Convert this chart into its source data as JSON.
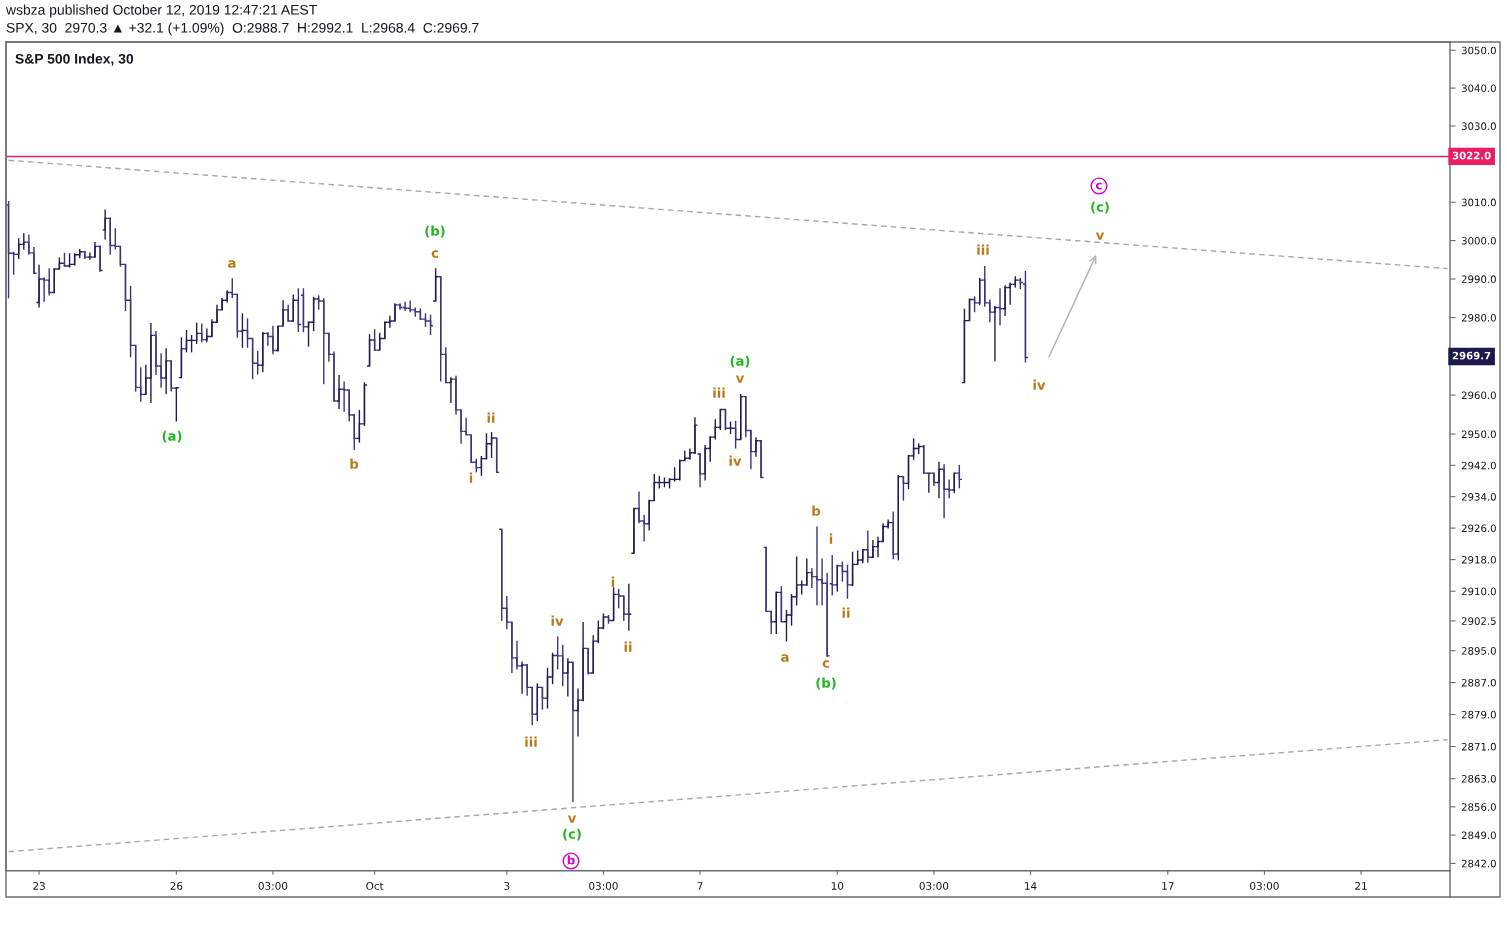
{
  "chart_data": {
    "type": "candlestick",
    "title": "S&P 500 Index, 30",
    "subtitle": "SPX, 30  2970.3 ▲ +32.1 (+1.09%)  O:2988.7  H:2992.1  L:2968.4  C:2969.7",
    "log": true,
    "ylim": [
      2840.2,
      3052.2
    ],
    "yticks": [
      {
        "value": 3050,
        "label": "3050.0"
      },
      {
        "value": 3040,
        "label": "3040.0"
      },
      {
        "value": 3030,
        "label": "3030.0"
      },
      {
        "value": 3010,
        "label": "3010.0"
      },
      {
        "value": 3000,
        "label": "3000.0"
      },
      {
        "value": 2990,
        "label": "2990.0"
      },
      {
        "value": 2980,
        "label": "2980.0"
      },
      {
        "value": 2960,
        "label": "2960.0"
      },
      {
        "value": 2950,
        "label": "2950.0"
      },
      {
        "value": 2942,
        "label": "2942.0"
      },
      {
        "value": 2934,
        "label": "2934.0"
      },
      {
        "value": 2926,
        "label": "2926.0"
      },
      {
        "value": 2918,
        "label": "2918.0"
      },
      {
        "value": 2910,
        "label": "2910.0"
      },
      2902.5,
      {
        "value": 2895,
        "label": "2895.0"
      },
      {
        "value": 2887,
        "label": "2887.0"
      },
      {
        "value": 2879,
        "label": "2879.0"
      },
      {
        "value": 2871,
        "label": "2871.0"
      },
      {
        "value": 2863,
        "label": "2863.0"
      },
      {
        "value": 2856,
        "label": "2856.0"
      },
      {
        "value": 2849,
        "label": "2849.0"
      },
      {
        "value": 2842,
        "label": "2842.0"
      }
    ],
    "categories": [
      null,
      null,
      null,
      null,
      null,
      null,
      "23",
      null,
      null,
      null,
      null,
      null,
      null,
      null,
      null,
      null,
      null,
      null,
      null,
      null,
      null,
      null,
      null,
      null,
      null,
      null,
      null,
      null,
      null,
      null,
      null,
      null,
      null,
      "26",
      null,
      null,
      null,
      null,
      null,
      null,
      null,
      null,
      null,
      null,
      null,
      null,
      null,
      null,
      null,
      null,
      null,
      null,
      "03:00",
      null,
      null,
      null,
      null,
      null,
      null,
      null,
      null,
      null,
      null,
      null,
      null,
      null,
      null,
      null,
      null,
      null,
      null,
      null,
      "Oct",
      null,
      null,
      null,
      null,
      null,
      null,
      null,
      null,
      null,
      null,
      null,
      null,
      null,
      null,
      null,
      null,
      null,
      null,
      null,
      null,
      null,
      null,
      null,
      null,
      null,
      "3",
      null,
      null,
      null,
      null,
      null,
      null,
      null,
      null,
      null,
      null,
      null,
      null,
      null,
      null,
      null,
      null,
      null,
      null,
      "03:00",
      null,
      null,
      null,
      null,
      null,
      null,
      null,
      null,
      null,
      null,
      null,
      null,
      null,
      null,
      null,
      null,
      null,
      null,
      "7",
      null,
      null,
      null,
      null,
      null,
      null,
      null,
      null,
      null,
      null,
      null,
      null,
      null,
      null,
      null,
      null,
      null,
      null,
      null,
      null,
      null,
      null,
      null,
      null,
      null,
      null,
      "10",
      null,
      null,
      null,
      null,
      null,
      null,
      null,
      null,
      null,
      null,
      null,
      null,
      null,
      null,
      null,
      null,
      null,
      null,
      "03:00",
      null,
      null,
      null,
      null,
      null,
      null,
      null,
      null,
      null,
      null,
      null,
      null,
      null,
      null,
      null,
      null,
      null,
      null,
      "14",
      null,
      null,
      null,
      null,
      null,
      null,
      null,
      null,
      null,
      null,
      null,
      null,
      null,
      null,
      null,
      null,
      null,
      null,
      null,
      null,
      null,
      null,
      null,
      null,
      null,
      null,
      "17",
      null,
      null,
      null,
      null,
      null,
      null,
      null,
      null,
      null,
      null,
      null,
      null,
      null,
      null,
      null,
      null,
      null,
      null,
      "03:00",
      null,
      null,
      null,
      null,
      null,
      null,
      null,
      null,
      null,
      null,
      null,
      null,
      null,
      null,
      null,
      null,
      null,
      null,
      "21",
      null,
      null,
      null,
      null,
      null,
      null,
      null,
      null,
      null,
      null,
      null,
      null,
      null,
      null,
      null,
      null,
      null
    ],
    "ohlc": [
      [
        3009.3,
        3010.3,
        2985.0,
        2996.7
      ],
      [
        2996.7,
        2997.1,
        2991.1,
        2996.4
      ],
      [
        2996.4,
        3000.6,
        2995.2,
        2999.0
      ],
      [
        2999.0,
        3001.9,
        2997.6,
        2999.6
      ],
      [
        2999.6,
        3001.5,
        2996.3,
        2996.8
      ],
      [
        2996.8,
        2998.3,
        2991.5,
        2991.5
      ],
      [
        2983.9,
        2993.7,
        2982.6,
        2990.0
      ],
      [
        2990.0,
        2990.4,
        2984.1,
        2989.7
      ],
      [
        2989.7,
        2992.8,
        2985.7,
        2986.5
      ],
      [
        2986.5,
        2992.8,
        2986.5,
        2992.6
      ],
      [
        2992.6,
        2995.6,
        2992.6,
        2994.1
      ],
      [
        2994.1,
        2996.8,
        2993.2,
        2993.4
      ],
      [
        2993.4,
        2996.7,
        2993.0,
        2993.8
      ],
      [
        2993.8,
        2996.7,
        2993.5,
        2996.3
      ],
      [
        2996.3,
        2997.8,
        2995.4,
        2997.1
      ],
      [
        2997.1,
        2997.3,
        2995.2,
        2995.7
      ],
      [
        2995.7,
        2996.9,
        2995.0,
        2995.7
      ],
      [
        2995.7,
        2999.6,
        2995.6,
        2998.5
      ],
      [
        2998.5,
        2998.7,
        2991.9,
        2992.2
      ],
      [
        3002.8,
        3008.1,
        3000.3,
        3005.8
      ],
      [
        3005.8,
        3006.0,
        2996.3,
        2998.7
      ],
      [
        2998.7,
        3003.2,
        2997.7,
        2998.5
      ],
      [
        2998.5,
        2998.5,
        2993.2,
        2993.8
      ],
      [
        2993.8,
        2993.8,
        2981.7,
        2984.5
      ],
      [
        2984.5,
        2988.2,
        2969.7,
        2972.8
      ],
      [
        2972.8,
        2972.8,
        2960.9,
        2962.0
      ],
      [
        2962.0,
        2967.2,
        2958.3,
        2960.2
      ],
      [
        2960.2,
        2967.8,
        2960.0,
        2964.4
      ],
      [
        2964.4,
        2978.6,
        2958.0,
        2975.4
      ],
      [
        2975.4,
        2976.5,
        2965.2,
        2967.5
      ],
      [
        2967.5,
        2970.8,
        2961.9,
        2964.4
      ],
      [
        2964.4,
        2972.1,
        2960.3,
        2968.8
      ],
      [
        2968.8,
        2968.9,
        2960.9,
        2961.8
      ],
      [
        2961.8,
        2962.0,
        2953.2,
        2961.9
      ],
      [
        2964.5,
        2974.9,
        2964.5,
        2971.9
      ],
      [
        2971.9,
        2976.8,
        2971.0,
        2974.1
      ],
      [
        2974.1,
        2975.5,
        2971.0,
        2974.1
      ],
      [
        2974.1,
        2978.7,
        2973.2,
        2975.9
      ],
      [
        2975.9,
        2978.5,
        2973.6,
        2974.3
      ],
      [
        2974.3,
        2977.2,
        2973.6,
        2975.1
      ],
      [
        2975.1,
        2979.6,
        2975.1,
        2978.8
      ],
      [
        2978.8,
        2983.3,
        2978.8,
        2982.0
      ],
      [
        2982.0,
        2985.1,
        2982.0,
        2984.5
      ],
      [
        2984.5,
        2987.1,
        2983.9,
        2986.5
      ],
      [
        2986.5,
        2990.2,
        2985.1,
        2986.0
      ],
      [
        2986.0,
        2986.0,
        2974.8,
        2976.5
      ],
      [
        2976.5,
        2981.1,
        2972.2,
        2976.7
      ],
      [
        2976.7,
        2979.8,
        2972.2,
        2974.6
      ],
      [
        2974.6,
        2974.6,
        2964.1,
        2968.2
      ],
      [
        2968.2,
        2971.4,
        2965.3,
        2967.7
      ],
      [
        2967.7,
        2976.3,
        2965.9,
        2975.9
      ],
      [
        2975.9,
        2976.2,
        2972.7,
        2975.1
      ],
      [
        2975.1,
        2977.9,
        2970.5,
        2971.5
      ],
      [
        2971.5,
        2977.8,
        2971.2,
        2977.8
      ],
      [
        2977.8,
        2984.5,
        2977.8,
        2982.0
      ],
      [
        2982.0,
        2983.3,
        2978.9,
        2979.1
      ],
      [
        2979.1,
        2986.0,
        2978.9,
        2984.5
      ],
      [
        2984.5,
        2987.6,
        2976.3,
        2978.2
      ],
      [
        2985.8,
        2987.6,
        2976.2,
        2977.6
      ],
      [
        2977.6,
        2978.9,
        2972.5,
        2978.8
      ],
      [
        2978.8,
        2985.4,
        2976.5,
        2984.8
      ],
      [
        2984.8,
        2985.8,
        2982.0,
        2984.3
      ],
      [
        2984.3,
        2985.0,
        2962.8,
        2975.9
      ],
      [
        2975.9,
        2976.1,
        2968.6,
        2970.5
      ],
      [
        2970.5,
        2971.2,
        2958.5,
        2958.5
      ],
      [
        2958.5,
        2965.2,
        2956.4,
        2961.5
      ],
      [
        2961.5,
        2963.5,
        2955.7,
        2961.3
      ],
      [
        2961.3,
        2961.3,
        2953.2,
        2954.9
      ],
      [
        2954.9,
        2955.1,
        2945.9,
        2948.9
      ],
      [
        2948.9,
        2956.2,
        2947.8,
        2952.6
      ],
      [
        2952.6,
        2963.3,
        2952.1,
        2962.6
      ],
      [
        2967.5,
        2975.7,
        2967.5,
        2974.2
      ],
      [
        2974.2,
        2977.0,
        2971.4,
        2971.6
      ],
      [
        2971.6,
        2976.1,
        2971.6,
        2974.6
      ],
      [
        2974.6,
        2978.9,
        2974.6,
        2978.8
      ],
      [
        2978.8,
        2980.5,
        2977.4,
        2979.1
      ],
      [
        2979.1,
        2983.7,
        2979.1,
        2983.3
      ],
      [
        2983.3,
        2983.7,
        2982.0,
        2982.6
      ],
      [
        2982.6,
        2984.1,
        2981.7,
        2982.4
      ],
      [
        2982.4,
        2984.4,
        2981.4,
        2982.0
      ],
      [
        2982.0,
        2982.6,
        2980.2,
        2981.5
      ],
      [
        2981.5,
        2982.4,
        2979.4,
        2979.6
      ],
      [
        2979.6,
        2981.1,
        2977.6,
        2979.1
      ],
      [
        2979.1,
        2980.8,
        2975.5,
        2977.9
      ],
      [
        2984.3,
        2992.8,
        2984.3,
        2990.6
      ],
      [
        2990.6,
        2990.6,
        2963.5,
        2970.5
      ],
      [
        2970.5,
        2972.3,
        2963.1,
        2963.2
      ],
      [
        2963.2,
        2964.6,
        2958.0,
        2964.1
      ],
      [
        2964.1,
        2965.0,
        2955.0,
        2956.2
      ],
      [
        2956.2,
        2956.2,
        2947.5,
        2950.7
      ],
      [
        2950.7,
        2954.2,
        2949.8,
        2949.8
      ],
      [
        2949.8,
        2949.8,
        2942.6,
        2942.8
      ],
      [
        2942.8,
        2943.7,
        2940.2,
        2941.4
      ],
      [
        2941.4,
        2944.4,
        2939.3,
        2943.7
      ],
      [
        2943.7,
        2950.2,
        2943.5,
        2947.5
      ],
      [
        2947.5,
        2950.5,
        2943.9,
        2949.0
      ],
      [
        2949.0,
        2949.0,
        2940.2,
        2940.2
      ],
      [
        2925.7,
        2925.7,
        2902.5,
        2905.7
      ],
      [
        2905.7,
        2908.8,
        2900.4,
        2902.2
      ],
      [
        2902.2,
        2902.2,
        2889.4,
        2893.2
      ],
      [
        2893.2,
        2897.5,
        2890.3,
        2891.2
      ],
      [
        2891.2,
        2892.3,
        2884.2,
        2891.4
      ],
      [
        2891.4,
        2891.6,
        2883.7,
        2885.8
      ],
      [
        2885.8,
        2885.9,
        2876.3,
        2879.1
      ],
      [
        2879.1,
        2886.8,
        2877.4,
        2885.8
      ],
      [
        2885.8,
        2885.8,
        2880.2,
        2883.1
      ],
      [
        2883.1,
        2890.7,
        2880.5,
        2888.4
      ],
      [
        2888.4,
        2894.5,
        2886.6,
        2893.8
      ],
      [
        2893.8,
        2898.6,
        2890.3,
        2893.7
      ],
      [
        2893.7,
        2896.5,
        2886.1,
        2889.4
      ],
      [
        2889.4,
        2893.1,
        2883.5,
        2892.1
      ],
      [
        2892.1,
        2892.1,
        2857.2,
        2880.0
      ],
      [
        2880.0,
        2885.5,
        2873.5,
        2882.6
      ],
      [
        2882.6,
        2902.2,
        2882.3,
        2895.6
      ],
      [
        2895.6,
        2895.6,
        2889.0,
        2889.4
      ],
      [
        2889.4,
        2898.9,
        2889.4,
        2897.4
      ],
      [
        2897.4,
        2902.6,
        2896.9,
        2900.7
      ],
      [
        2900.7,
        2904.4,
        2900.4,
        2903.5
      ],
      [
        2903.5,
        2904.0,
        2901.8,
        2902.6
      ],
      [
        2902.6,
        2911.0,
        2902.6,
        2909.2
      ],
      [
        2909.2,
        2910.6,
        2905.7,
        2908.8
      ],
      [
        2908.8,
        2908.8,
        2902.5,
        2904.2
      ],
      [
        2904.2,
        2911.9,
        2900.0,
        2904.2
      ],
      [
        2919.6,
        2931.0,
        2919.6,
        2931.0
      ],
      [
        2931.0,
        2935.3,
        2927.2,
        2927.8
      ],
      [
        2927.8,
        2929.3,
        2922.6,
        2927.1
      ],
      [
        2927.1,
        2933.2,
        2925.4,
        2933.0
      ],
      [
        2933.0,
        2939.8,
        2933.0,
        2937.6
      ],
      [
        2937.6,
        2939.3,
        2936.1,
        2937.6
      ],
      [
        2937.6,
        2938.9,
        2936.4,
        2937.6
      ],
      [
        2937.6,
        2938.7,
        2936.1,
        2938.4
      ],
      [
        2938.4,
        2941.5,
        2937.8,
        2938.4
      ],
      [
        2938.4,
        2943.5,
        2938.1,
        2943.2
      ],
      [
        2943.2,
        2945.8,
        2943.2,
        2943.8
      ],
      [
        2943.8,
        2946.3,
        2943.4,
        2945.2
      ],
      [
        2945.2,
        2954.3,
        2944.9,
        2952.3
      ],
      [
        2944.9,
        2945.1,
        2936.4,
        2939.8
      ],
      [
        2939.8,
        2947.2,
        2938.1,
        2946.3
      ],
      [
        2946.3,
        2949.5,
        2942.9,
        2949.2
      ],
      [
        2949.2,
        2953.8,
        2948.6,
        2951.7
      ],
      [
        2951.7,
        2956.3,
        2951.0,
        2956.3
      ],
      [
        2956.3,
        2956.3,
        2951.0,
        2951.5
      ],
      [
        2951.5,
        2953.2,
        2950.0,
        2951.5
      ],
      [
        2951.5,
        2953.4,
        2946.3,
        2948.6
      ],
      [
        2948.6,
        2960.3,
        2948.6,
        2959.6
      ],
      [
        2959.6,
        2959.8,
        2949.2,
        2950.9
      ],
      [
        2950.9,
        2950.9,
        2941.0,
        2945.5
      ],
      [
        2945.5,
        2949.2,
        2944.2,
        2948.3
      ],
      [
        2948.3,
        2948.5,
        2938.9,
        2938.9
      ],
      [
        2921.1,
        2921.1,
        2904.9,
        2904.9
      ],
      [
        2904.9,
        2904.9,
        2899.2,
        2902.3
      ],
      [
        2902.3,
        2909.9,
        2899.2,
        2909.7
      ],
      [
        2909.7,
        2911.3,
        2902.3,
        2902.3
      ],
      [
        2902.3,
        2905.3,
        2897.3,
        2904.0
      ],
      [
        2904.0,
        2909.3,
        2901.3,
        2908.6
      ],
      [
        2908.6,
        2918.8,
        2906.4,
        2911.6
      ],
      [
        2911.6,
        2912.7,
        2909.2,
        2911.6
      ],
      [
        2911.6,
        2918.3,
        2911.3,
        2914.7
      ],
      [
        2914.7,
        2915.8,
        2910.8,
        2913.7
      ],
      [
        2913.7,
        2926.4,
        2906.4,
        2912.9
      ],
      [
        2912.9,
        2918.3,
        2906.4,
        2912.0
      ],
      [
        2912.0,
        2914.6,
        2893.5,
        2893.7
      ],
      [
        2911.9,
        2919.2,
        2908.9,
        2911.6
      ],
      [
        2911.6,
        2916.7,
        2909.9,
        2916.4
      ],
      [
        2916.4,
        2917.5,
        2912.4,
        2915.0
      ],
      [
        2915.0,
        2916.7,
        2908.1,
        2911.6
      ],
      [
        2911.6,
        2920.0,
        2911.3,
        2916.8
      ],
      [
        2916.8,
        2920.3,
        2916.8,
        2917.9
      ],
      [
        2917.9,
        2920.5,
        2917.1,
        2920.5
      ],
      [
        2920.5,
        2925.4,
        2917.2,
        2918.6
      ],
      [
        2918.6,
        2923.0,
        2918.5,
        2921.3
      ],
      [
        2921.3,
        2923.8,
        2918.6,
        2922.6
      ],
      [
        2922.6,
        2927.2,
        2922.6,
        2926.4
      ],
      [
        2926.4,
        2928.2,
        2925.9,
        2927.4
      ],
      [
        2927.4,
        2930.2,
        2918.1,
        2919.4
      ],
      [
        2919.4,
        2939.5,
        2917.8,
        2939.1
      ],
      [
        2939.1,
        2939.1,
        2933.0,
        2937.4
      ],
      [
        2937.4,
        2944.6,
        2935.9,
        2944.4
      ],
      [
        2944.4,
        2948.9,
        2943.4,
        2946.3
      ],
      [
        2946.3,
        2947.6,
        2944.9,
        2946.8
      ],
      [
        2946.8,
        2947.2,
        2939.8,
        2940.0
      ],
      [
        2940.0,
        2940.0,
        2935.0,
        2940.0
      ],
      [
        2940.0,
        2940.1,
        2936.7,
        2937.6
      ],
      [
        2937.6,
        2942.9,
        2933.6,
        2941.0
      ],
      [
        2941.0,
        2942.3,
        2928.5,
        2935.9
      ],
      [
        2935.9,
        2938.4,
        2933.6,
        2935.7
      ],
      [
        2935.7,
        2940.1,
        2934.9,
        2940.0
      ],
      [
        2940.0,
        2942.1,
        2936.1,
        2938.4
      ],
      [
        2963.2,
        2982.3,
        2963.2,
        2979.2
      ],
      [
        2979.2,
        2984.9,
        2979.2,
        2984.7
      ],
      [
        2984.7,
        2985.5,
        2981.4,
        2983.8
      ],
      [
        2983.8,
        2990.3,
        2983.3,
        2989.7
      ],
      [
        2989.7,
        2993.4,
        2982.8,
        2983.8
      ],
      [
        2983.8,
        2984.7,
        2978.8,
        2981.4
      ],
      [
        2981.4,
        2983.0,
        2968.7,
        2982.6
      ],
      [
        2982.6,
        2987.6,
        2978.0,
        2982.3
      ],
      [
        2982.3,
        2988.4,
        2980.4,
        2987.8
      ],
      [
        2987.8,
        2989.1,
        2983.3,
        2988.6
      ],
      [
        2988.6,
        2990.7,
        2987.8,
        2989.7
      ],
      [
        2989.7,
        2990.3,
        2987.4,
        2989.1
      ],
      [
        2988.7,
        2992.1,
        2968.4,
        2969.7
      ],
      null,
      null,
      null,
      null,
      null,
      null,
      null,
      null,
      null,
      null,
      null,
      null,
      null,
      null,
      null,
      null,
      null,
      null,
      null,
      null,
      null,
      null,
      null,
      null,
      null,
      null,
      null,
      null,
      null,
      null,
      null,
      null,
      null,
      null,
      null,
      null,
      null,
      null,
      null,
      null,
      null,
      null,
      null,
      null,
      null,
      null,
      null,
      null,
      null,
      null,
      null,
      null,
      null,
      null,
      null,
      null,
      null,
      null,
      null,
      null,
      null,
      null,
      null,
      null,
      null,
      null,
      null,
      null,
      null,
      null,
      null,
      null,
      null,
      null,
      null,
      null,
      null,
      null,
      null,
      null,
      null,
      null,
      null
    ],
    "colors": [
      "#3a3478",
      "#3a3478",
      "#221c52",
      "#221c52",
      "#3a3478",
      "#3a3478",
      "#221c52",
      "#3a3478",
      "#3a3478",
      "#221c52",
      "#221c52",
      "#3a3478",
      "#221c52",
      "#221c52",
      "#221c52",
      "#3a3478",
      "#221c52",
      "#221c52",
      "#3a3478",
      "#221c52",
      "#3a3478",
      "#3a3478",
      "#3a3478",
      "#3a3478",
      "#3a3478",
      "#3a3478",
      "#3a3478",
      "#221c52",
      "#221c52",
      "#3a3478",
      "#3a3478",
      "#221c52",
      "#3a3478",
      "#221c52",
      "#221c52",
      "#221c52",
      "#221c52",
      "#221c52",
      "#3a3478",
      "#221c52",
      "#221c52",
      "#221c52",
      "#221c52",
      "#221c52",
      "#3a3478",
      "#3a3478",
      "#221c52",
      "#3a3478",
      "#3a3478",
      "#3a3478",
      "#221c52",
      "#3a3478",
      "#3a3478",
      "#221c52",
      "#221c52",
      "#3a3478",
      "#221c52",
      "#3a3478",
      "#3a3478",
      "#221c52",
      "#221c52",
      "#3a3478",
      "#3a3478",
      "#3a3478",
      "#3a3478",
      "#221c52",
      "#3a3478",
      "#3a3478",
      "#3a3478",
      "#221c52",
      "#221c52",
      "#221c52",
      "#3a3478",
      "#221c52",
      "#221c52",
      "#221c52",
      "#221c52",
      "#3a3478",
      "#3a3478",
      "#3a3478",
      "#3a3478",
      "#3a3478",
      "#3a3478",
      "#3a3478",
      "#221c52",
      "#3a3478",
      "#3a3478",
      "#221c52",
      "#3a3478",
      "#3a3478",
      "#3a3478",
      "#3a3478",
      "#3a3478",
      "#221c52",
      "#221c52",
      "#221c52",
      "#3a3478",
      "#3a3478",
      "#3a3478",
      "#3a3478",
      "#3a3478",
      "#221c52",
      "#3a3478",
      "#3a3478",
      "#221c52",
      "#3a3478",
      "#221c52",
      "#221c52",
      "#3a3478",
      "#3a3478",
      "#221c52",
      "#3a3478",
      "#221c52",
      "#221c52",
      "#3a3478",
      "#221c52",
      "#221c52",
      "#221c52",
      "#3a3478",
      "#221c52",
      "#3a3478",
      "#3a3478",
      "#221c52",
      "#221c52",
      "#3a3478",
      "#3a3478",
      "#221c52",
      "#221c52",
      "#221c52",
      "#221c52",
      "#221c52",
      "#221c52",
      "#221c52",
      "#221c52",
      "#221c52",
      "#221c52",
      "#3a3478",
      "#221c52",
      "#221c52",
      "#221c52",
      "#221c52",
      "#3a3478",
      "#221c52",
      "#3a3478",
      "#221c52",
      "#3a3478",
      "#3a3478",
      "#221c52",
      "#3a3478",
      "#3a3478",
      "#3a3478",
      "#221c52",
      "#3a3478",
      "#221c52",
      "#221c52",
      "#221c52",
      "#221c52",
      "#221c52",
      "#3a3478",
      "#3a3478",
      "#3a3478",
      "#3a3478",
      "#3a3478",
      "#221c52",
      "#3a3478",
      "#3a3478",
      "#221c52",
      "#221c52",
      "#221c52",
      "#3a3478",
      "#221c52",
      "#221c52",
      "#221c52",
      "#221c52",
      "#3a3478",
      "#221c52",
      "#3a3478",
      "#221c52",
      "#221c52",
      "#221c52",
      "#3a3478",
      "#221c52",
      "#3a3478",
      "#221c52",
      "#3a3478",
      "#3a3478",
      "#221c52",
      "#3a3478",
      "#221c52",
      "#221c52",
      "#3a3478",
      "#221c52",
      "#3a3478",
      "#3a3478",
      "#221c52",
      "#3a3478",
      "#221c52",
      "#221c52",
      "#221c52",
      "#3a3478",
      "#3a3478",
      null,
      null,
      null,
      null,
      null,
      null,
      null,
      null,
      null,
      null,
      null,
      null,
      null,
      null,
      null,
      null,
      null,
      null,
      null,
      null,
      null,
      null,
      null,
      null,
      null,
      null,
      null,
      null,
      null,
      null,
      null,
      null,
      null,
      null,
      null,
      null,
      null,
      null,
      null,
      null,
      null,
      null,
      null,
      null,
      null,
      null,
      null,
      null,
      null,
      null,
      null,
      null,
      null,
      null,
      null,
      null,
      null,
      null,
      null,
      null,
      null,
      null,
      null,
      null,
      null,
      null,
      null,
      null,
      null,
      null,
      null,
      null,
      null,
      null,
      null,
      null,
      null,
      null,
      null,
      null,
      null,
      null,
      null
    ],
    "series": [
      {
        "type": "line",
        "color": "#a3a6af",
        "line_style": "dashed",
        "values": [
          3021.0,
          null,
          null,
          null,
          null,
          null,
          null,
          null,
          null,
          null,
          null,
          null,
          null,
          null,
          null,
          null,
          null,
          null,
          null,
          null,
          null,
          null,
          null,
          null,
          null,
          null,
          null,
          null,
          null,
          null,
          null,
          null,
          null,
          null,
          null,
          null,
          null,
          null,
          null,
          null,
          null,
          null,
          null,
          null,
          null,
          null,
          null,
          null,
          null,
          null,
          null,
          null,
          null,
          null,
          null,
          null,
          null,
          null,
          null,
          null,
          null,
          null,
          null,
          null,
          null,
          null,
          null,
          null,
          null,
          null,
          null,
          null,
          null,
          null,
          null,
          null,
          null,
          null,
          null,
          null,
          null,
          null,
          null,
          null,
          null,
          null,
          null,
          null,
          null,
          null,
          null,
          null,
          null,
          null,
          null,
          null,
          null,
          null,
          null,
          null,
          null,
          null,
          null,
          null,
          null,
          null,
          null,
          null,
          null,
          null,
          null,
          null,
          null,
          null,
          null,
          null,
          null,
          null,
          null,
          null,
          null,
          null,
          null,
          null,
          null,
          null,
          null,
          null,
          null,
          null,
          null,
          null,
          null,
          null,
          null,
          null,
          null,
          null,
          null,
          null,
          null,
          null,
          null,
          null,
          null,
          null,
          null,
          null,
          null,
          null,
          null,
          null,
          null,
          null,
          null,
          null,
          null,
          null,
          null,
          null,
          null,
          null,
          null,
          null,
          null,
          null,
          null,
          null,
          null,
          null,
          null,
          null,
          null,
          null,
          null,
          null,
          null,
          null,
          null,
          null,
          null,
          null,
          null,
          null,
          null,
          null,
          null,
          null,
          null,
          null,
          null,
          null,
          null,
          null,
          null,
          null,
          null,
          null,
          null,
          null,
          null,
          null,
          null,
          null,
          null,
          null,
          null,
          null,
          null,
          null,
          null,
          null,
          null,
          null,
          null,
          null,
          null,
          null,
          null,
          null,
          null,
          null,
          null,
          null,
          null,
          null,
          null,
          null,
          null,
          null,
          null,
          null,
          null,
          null,
          null,
          null,
          null,
          null,
          null,
          null,
          null,
          null,
          null,
          null,
          null,
          null,
          null,
          null,
          null,
          null,
          null,
          null,
          null,
          null,
          null,
          null,
          null,
          null,
          null,
          null,
          null,
          null,
          null,
          null,
          null,
          null,
          null,
          null,
          null,
          null,
          null,
          null,
          null,
          null,
          null,
          null,
          null,
          null,
          null,
          null,
          null,
          null,
          null,
          2992.7
        ]
      },
      {
        "type": "line",
        "color": "#a3a6af",
        "line_style": "dashed",
        "values": [
          2844.9,
          null,
          null,
          null,
          null,
          null,
          null,
          null,
          null,
          null,
          null,
          null,
          null,
          null,
          null,
          null,
          null,
          null,
          null,
          null,
          null,
          null,
          null,
          null,
          null,
          null,
          null,
          null,
          null,
          null,
          null,
          null,
          null,
          null,
          null,
          null,
          null,
          null,
          null,
          null,
          null,
          null,
          null,
          null,
          null,
          null,
          null,
          null,
          null,
          null,
          null,
          null,
          null,
          null,
          null,
          null,
          null,
          null,
          null,
          null,
          null,
          null,
          null,
          null,
          null,
          null,
          null,
          null,
          null,
          null,
          null,
          null,
          null,
          null,
          null,
          null,
          null,
          null,
          null,
          null,
          null,
          null,
          null,
          null,
          null,
          null,
          null,
          null,
          null,
          null,
          null,
          null,
          null,
          null,
          null,
          null,
          null,
          null,
          null,
          null,
          null,
          null,
          null,
          null,
          null,
          null,
          null,
          null,
          null,
          null,
          null,
          null,
          null,
          null,
          null,
          null,
          null,
          null,
          null,
          null,
          null,
          null,
          null,
          null,
          null,
          null,
          null,
          null,
          null,
          null,
          null,
          null,
          null,
          null,
          null,
          null,
          null,
          null,
          null,
          null,
          null,
          null,
          null,
          null,
          null,
          null,
          null,
          null,
          null,
          null,
          null,
          null,
          null,
          null,
          null,
          null,
          null,
          null,
          null,
          null,
          null,
          null,
          null,
          null,
          null,
          null,
          null,
          null,
          null,
          null,
          null,
          null,
          null,
          null,
          null,
          null,
          null,
          null,
          null,
          null,
          null,
          null,
          null,
          null,
          null,
          null,
          null,
          null,
          null,
          null,
          null,
          null,
          null,
          null,
          null,
          null,
          null,
          null,
          null,
          null,
          null,
          null,
          null,
          null,
          null,
          null,
          null,
          null,
          null,
          null,
          null,
          null,
          null,
          null,
          null,
          null,
          null,
          null,
          null,
          null,
          null,
          null,
          null,
          null,
          null,
          null,
          null,
          null,
          null,
          null,
          null,
          null,
          null,
          null,
          null,
          null,
          null,
          null,
          null,
          null,
          null,
          null,
          null,
          null,
          null,
          null,
          null,
          null,
          null,
          null,
          null,
          null,
          null,
          null,
          null,
          null,
          null,
          null,
          null,
          null,
          null,
          null,
          null,
          null,
          null,
          null,
          null,
          null,
          null,
          null,
          null,
          null,
          null,
          null,
          null,
          null,
          null,
          null,
          null,
          null,
          null,
          null,
          null,
          2872.7
        ]
      }
    ],
    "ref_lines": [
      {
        "axis": "y",
        "value": 3022.0,
        "label": "3022.0",
        "color": "#e91e63",
        "line_style": "solid"
      }
    ],
    "annotations": [
      "wsbza published October 12, 2019 12:47:21 AEST",
      "(a)",
      "a",
      "b",
      "c",
      "(b)",
      "i",
      "ii",
      "iii",
      "iv",
      "v",
      "(c)",
      "b",
      "i",
      "ii",
      "iii",
      "v",
      "(a)",
      "iv",
      "b",
      "i",
      "ii",
      "a",
      "c",
      "(b)",
      "iii",
      "iv",
      "v",
      "(c)",
      "c",
      "2969.7"
    ]
  }
}
